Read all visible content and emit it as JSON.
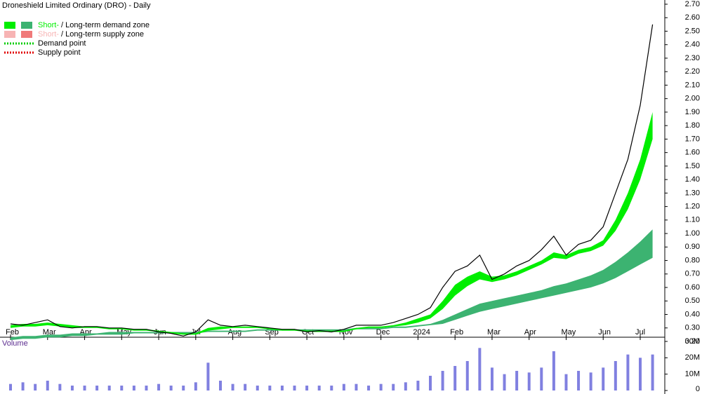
{
  "chart_data": [
    {
      "type": "line",
      "title": "Droneshield Limited Ordinary (DRO) - Daily",
      "legend": [
        {
          "texts": [
            "Short-",
            " / Long-term demand zone"
          ],
          "swatches": [
            "#00ee00",
            "#3cb371"
          ]
        },
        {
          "texts": [
            "Short-",
            " / Long-term supply zone"
          ],
          "swatches": [
            "#f7b4b4",
            "#f07a7a"
          ]
        },
        {
          "texts": [
            "Demand point"
          ],
          "line": "#00cc00"
        },
        {
          "texts": [
            "Supply point"
          ],
          "line": "#e00000"
        }
      ],
      "categories": [
        "Feb",
        null,
        null,
        "Mar",
        null,
        null,
        "Apr",
        null,
        null,
        "May",
        null,
        null,
        "Jun",
        null,
        null,
        "Jul",
        null,
        null,
        "Aug",
        null,
        null,
        "Sep",
        null,
        null,
        "Oct",
        null,
        null,
        "Nov",
        null,
        null,
        "Dec",
        null,
        null,
        "2024",
        null,
        null,
        "Feb",
        null,
        null,
        "Mar",
        null,
        null,
        "Apr",
        null,
        null,
        "May",
        null,
        null,
        "Jun",
        null,
        null,
        "Jul",
        null
      ],
      "series": [
        {
          "color": "#000000",
          "values": [
            0.33,
            0.32,
            0.34,
            0.36,
            0.31,
            0.3,
            0.31,
            0.31,
            0.3,
            0.3,
            0.29,
            0.29,
            0.27,
            0.26,
            0.24,
            0.27,
            0.36,
            0.32,
            0.31,
            0.32,
            0.31,
            0.3,
            0.29,
            0.29,
            0.27,
            0.28,
            0.27,
            0.29,
            0.32,
            0.32,
            0.32,
            0.34,
            0.37,
            0.4,
            0.45,
            0.6,
            0.72,
            0.76,
            0.84,
            0.66,
            0.7,
            0.76,
            0.8,
            0.88,
            0.98,
            0.84,
            0.92,
            0.95,
            1.05,
            1.3,
            1.55,
            1.95,
            2.55
          ]
        }
      ],
      "zones": [
        {
          "color": "#3cb371",
          "upper": [
            0.23,
            0.24,
            0.24,
            0.25,
            0.25,
            0.26,
            0.26,
            0.26,
            0.27,
            0.27,
            0.27,
            0.27,
            0.27,
            0.27,
            0.27,
            0.27,
            0.28,
            0.28,
            0.28,
            0.28,
            0.29,
            0.29,
            0.29,
            0.29,
            0.29,
            0.29,
            0.29,
            0.29,
            0.3,
            0.3,
            0.3,
            0.31,
            0.31,
            0.32,
            0.33,
            0.36,
            0.4,
            0.44,
            0.48,
            0.5,
            0.52,
            0.54,
            0.56,
            0.58,
            0.61,
            0.63,
            0.66,
            0.69,
            0.73,
            0.79,
            0.86,
            0.94,
            1.03
          ],
          "lower": [
            0.21,
            0.22,
            0.22,
            0.23,
            0.23,
            0.24,
            0.24,
            0.25,
            0.25,
            0.25,
            0.26,
            0.26,
            0.26,
            0.26,
            0.26,
            0.26,
            0.27,
            0.27,
            0.27,
            0.27,
            0.28,
            0.28,
            0.28,
            0.28,
            0.28,
            0.28,
            0.28,
            0.28,
            0.29,
            0.29,
            0.29,
            0.3,
            0.3,
            0.31,
            0.32,
            0.33,
            0.36,
            0.39,
            0.42,
            0.44,
            0.46,
            0.48,
            0.5,
            0.52,
            0.54,
            0.56,
            0.58,
            0.6,
            0.63,
            0.67,
            0.72,
            0.77,
            0.82
          ]
        },
        {
          "color": "#00ee00",
          "upper": [
            0.32,
            0.33,
            0.33,
            0.34,
            0.33,
            0.32,
            0.31,
            0.31,
            0.3,
            0.3,
            0.29,
            0.29,
            0.28,
            0.27,
            0.26,
            0.26,
            0.3,
            0.31,
            0.31,
            0.31,
            0.31,
            0.3,
            0.29,
            0.29,
            0.28,
            0.28,
            0.28,
            0.28,
            0.3,
            0.31,
            0.31,
            0.32,
            0.34,
            0.37,
            0.4,
            0.5,
            0.62,
            0.68,
            0.72,
            0.68,
            0.69,
            0.72,
            0.76,
            0.8,
            0.86,
            0.84,
            0.88,
            0.9,
            0.95,
            1.1,
            1.3,
            1.55,
            1.9
          ],
          "lower": [
            0.3,
            0.31,
            0.31,
            0.32,
            0.31,
            0.3,
            0.3,
            0.3,
            0.29,
            0.29,
            0.28,
            0.28,
            0.27,
            0.26,
            0.25,
            0.25,
            0.28,
            0.29,
            0.3,
            0.3,
            0.3,
            0.29,
            0.28,
            0.28,
            0.27,
            0.27,
            0.27,
            0.27,
            0.29,
            0.3,
            0.3,
            0.31,
            0.32,
            0.34,
            0.37,
            0.44,
            0.54,
            0.61,
            0.66,
            0.64,
            0.66,
            0.69,
            0.73,
            0.77,
            0.82,
            0.81,
            0.85,
            0.87,
            0.91,
            1.02,
            1.18,
            1.4,
            1.7
          ]
        }
      ],
      "ylim": [
        0.2,
        2.7
      ],
      "yticks": [
        {
          "value": 0.2,
          "label": "0.20"
        },
        {
          "value": 0.3,
          "label": "0.30"
        },
        {
          "value": 0.4,
          "label": "0.40"
        },
        {
          "value": 0.5,
          "label": "0.50"
        },
        {
          "value": 0.6,
          "label": "0.60"
        },
        {
          "value": 0.7,
          "label": "0.70"
        },
        {
          "value": 0.8,
          "label": "0.80"
        },
        {
          "value": 0.9,
          "label": "0.90"
        },
        {
          "value": 1.0,
          "label": "1.00"
        },
        {
          "value": 1.1,
          "label": "1.10"
        },
        {
          "value": 1.2,
          "label": "1.20"
        },
        {
          "value": 1.3,
          "label": "1.30"
        },
        {
          "value": 1.4,
          "label": "1.40"
        },
        {
          "value": 1.5,
          "label": "1.50"
        },
        {
          "value": 1.6,
          "label": "1.60"
        },
        {
          "value": 1.7,
          "label": "1.70"
        },
        {
          "value": 1.8,
          "label": "1.80"
        },
        {
          "value": 1.9,
          "label": "1.90"
        },
        {
          "value": 2.0,
          "label": "2.00"
        },
        {
          "value": 2.1,
          "label": "2.10"
        },
        {
          "value": 2.2,
          "label": "2.20"
        },
        {
          "value": 2.3,
          "label": "2.30"
        },
        {
          "value": 2.4,
          "label": "2.40"
        },
        {
          "value": 2.5,
          "label": "2.50"
        },
        {
          "value": 2.6,
          "label": "2.60"
        },
        {
          "value": 2.7,
          "label": "2.70"
        }
      ]
    },
    {
      "type": "bar",
      "title": "Volume",
      "color": "#8080e0",
      "values": [
        4,
        5,
        4,
        6,
        4,
        3,
        3,
        3,
        3,
        3,
        3,
        3,
        4,
        3,
        3,
        5,
        17,
        6,
        4,
        4,
        3,
        3,
        3,
        3,
        3,
        3,
        3,
        4,
        4,
        3,
        4,
        4,
        5,
        6,
        9,
        12,
        15,
        18,
        26,
        14,
        10,
        12,
        11,
        14,
        24,
        10,
        12,
        11,
        14,
        18,
        22,
        20,
        22
      ],
      "ylim": [
        0,
        30
      ],
      "yticks": [
        0,
        {
          "value": 10,
          "label": "10M"
        },
        {
          "value": 20,
          "label": "20M"
        },
        {
          "value": 30,
          "label": "30M"
        }
      ]
    }
  ]
}
